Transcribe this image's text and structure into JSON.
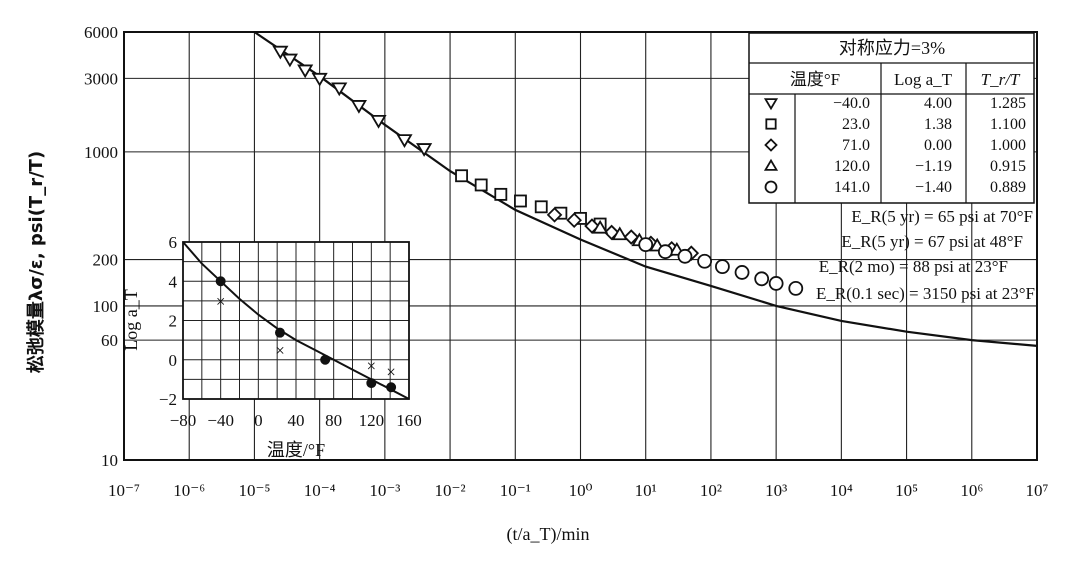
{
  "chart_data": [
    {
      "type": "scatter",
      "ylabel": "松弛模量λσ/ε, psi(T_r/T)",
      "xlabel": "(t/a_T)/min",
      "x_scale": "log",
      "y_scale": "log",
      "xlim": [
        1e-07,
        10000000.0
      ],
      "ylim": [
        10,
        6000
      ],
      "x_ticks": [
        {
          "v": 1e-07,
          "label": "10⁻⁷"
        },
        {
          "v": 1e-06,
          "label": "10⁻⁶"
        },
        {
          "v": 1e-05,
          "label": "10⁻⁵"
        },
        {
          "v": 0.0001,
          "label": "10⁻⁴"
        },
        {
          "v": 0.001,
          "label": "10⁻³"
        },
        {
          "v": 0.01,
          "label": "10⁻²"
        },
        {
          "v": 0.1,
          "label": "10⁻¹"
        },
        {
          "v": 1.0,
          "label": "10⁰"
        },
        {
          "v": 10.0,
          "label": "10¹"
        },
        {
          "v": 100.0,
          "label": "10²"
        },
        {
          "v": 1000.0,
          "label": "10³"
        },
        {
          "v": 10000.0,
          "label": "10⁴"
        },
        {
          "v": 100000.0,
          "label": "10⁵"
        },
        {
          "v": 1000000.0,
          "label": "10⁶"
        },
        {
          "v": 10000000.0,
          "label": "10⁷"
        }
      ],
      "y_ticks": [
        {
          "v": 6000,
          "label": "6000"
        },
        {
          "v": 3000,
          "label": "3000"
        },
        {
          "v": 1000,
          "label": "1000"
        },
        {
          "v": 200,
          "label": "200"
        },
        {
          "v": 100,
          "label": "100"
        },
        {
          "v": 60,
          "label": "60"
        },
        {
          "v": 10,
          "label": "10"
        }
      ],
      "y_grid": [
        6000,
        3000,
        1000,
        200,
        100,
        60,
        10
      ],
      "grid": true,
      "master_curve": {
        "x": [
          1e-05,
          0.0001,
          0.001,
          0.01,
          0.1,
          1,
          10,
          100,
          1000,
          10000,
          100000,
          1000000,
          10000000
        ],
        "y": [
          6000,
          3100,
          1500,
          750,
          420,
          270,
          180,
          135,
          100,
          80,
          68,
          60,
          55
        ]
      },
      "legend": {
        "title": "对称应力=3%",
        "headers": [
          "温度°F",
          "Log a_T",
          "T_r/T"
        ],
        "rows": [
          {
            "marker": "triangle-down",
            "temp": "−40.0",
            "log_aT": "4.00",
            "ratio": "1.285"
          },
          {
            "marker": "square",
            "temp": "23.0",
            "log_aT": "1.38",
            "ratio": "1.100"
          },
          {
            "marker": "diamond",
            "temp": "71.0",
            "log_aT": "0.00",
            "ratio": "1.000"
          },
          {
            "marker": "triangle-up",
            "temp": "120.0",
            "log_aT": "−1.19",
            "ratio": "0.915"
          },
          {
            "marker": "circle",
            "temp": "141.0",
            "log_aT": "−1.40",
            "ratio": "0.889"
          }
        ]
      },
      "annotations": [
        "E_R(5 yr) = 65 psi at 70°F",
        "E_R(5 yr) = 67 psi at 48°F",
        "E_R(2 mo) = 88 psi at 23°F",
        "E_R(0.1 sec) = 3150 psi at 23°F"
      ],
      "series": [
        {
          "marker": "triangle-down",
          "x": [
            2.5e-05,
            3.5e-05,
            6e-05,
            0.0001,
            0.0002,
            0.0004,
            0.0008,
            0.002,
            0.004
          ],
          "y": [
            4500,
            4000,
            3400,
            3000,
            2600,
            2000,
            1600,
            1200,
            1050
          ]
        },
        {
          "marker": "square",
          "x": [
            0.015,
            0.03,
            0.06,
            0.12,
            0.25,
            0.5,
            1,
            2
          ],
          "y": [
            700,
            610,
            530,
            480,
            440,
            400,
            370,
            340
          ]
        },
        {
          "marker": "diamond",
          "x": [
            0.4,
            0.8,
            1.5,
            3,
            6,
            12,
            25,
            50
          ],
          "y": [
            390,
            360,
            330,
            300,
            280,
            255,
            235,
            220
          ]
        },
        {
          "marker": "triangle-up",
          "x": [
            2,
            4,
            8,
            15,
            30
          ],
          "y": [
            320,
            290,
            265,
            245,
            230
          ]
        },
        {
          "marker": "circle",
          "x": [
            10,
            20,
            40,
            80,
            150,
            300,
            600,
            1000,
            2000
          ],
          "y": [
            250,
            225,
            210,
            195,
            180,
            165,
            150,
            140,
            130
          ]
        }
      ]
    },
    {
      "type": "scatter",
      "xlabel": "温度/°F",
      "ylabel": "Log a_T",
      "xlim": [
        -80,
        160
      ],
      "ylim": [
        -2,
        6
      ],
      "x_ticks": [
        -80,
        -40,
        0,
        40,
        80,
        120,
        160
      ],
      "y_ticks": [
        6,
        4,
        2,
        0,
        -2
      ],
      "x_tick_labels": [
        "−80",
        "−40",
        "0",
        "40",
        "80",
        "120",
        "160"
      ],
      "y_tick_labels": [
        "6",
        "4",
        "2",
        "0",
        "−2"
      ],
      "grid": true,
      "curve": {
        "x": [
          -80,
          -60,
          -40,
          -20,
          0,
          20,
          40,
          60,
          80,
          100,
          120,
          140,
          160
        ],
        "y": [
          6.0,
          4.9,
          4.0,
          3.1,
          2.3,
          1.6,
          1.0,
          0.5,
          0.0,
          -0.5,
          -1.0,
          -1.5,
          -2.0
        ]
      },
      "points_dot": {
        "x": [
          -40,
          23,
          71,
          120,
          141
        ],
        "y": [
          4.0,
          1.38,
          0.0,
          -1.19,
          -1.4
        ]
      },
      "points_x": {
        "x": [
          -40,
          23,
          120,
          141
        ],
        "y": [
          3.0,
          0.5,
          -0.3,
          -0.6
        ]
      }
    }
  ]
}
